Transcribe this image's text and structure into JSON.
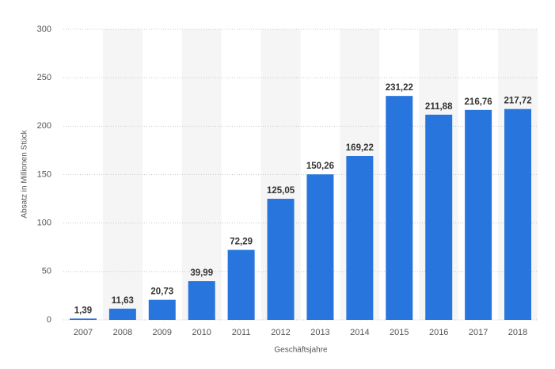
{
  "chart_data": {
    "type": "bar",
    "categories": [
      "2007",
      "2008",
      "2009",
      "2010",
      "2011",
      "2012",
      "2013",
      "2014",
      "2015",
      "2016",
      "2017",
      "2018"
    ],
    "values": [
      1.39,
      11.63,
      20.73,
      39.99,
      72.29,
      125.05,
      150.26,
      169.22,
      231.22,
      211.88,
      216.76,
      217.72
    ],
    "value_labels": [
      "1,39",
      "11,63",
      "20,73",
      "39,99",
      "72,29",
      "125,05",
      "150,26",
      "169,22",
      "231,22",
      "211,88",
      "216,76",
      "217,72"
    ],
    "color": "#2876dd",
    "ylabel": "Absatz in Millionen Stück",
    "xlabel": "Geschäftsjahre",
    "ylim": [
      0,
      300
    ],
    "yticks": [
      0,
      50,
      100,
      150,
      200,
      250,
      300
    ],
    "grid": true
  }
}
